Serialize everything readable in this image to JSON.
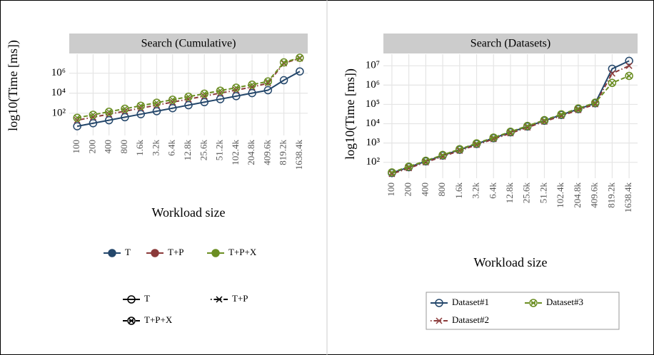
{
  "chart_data": [
    {
      "type": "line",
      "title": "Search (Cumulative)",
      "xlabel": "Workload size",
      "ylabel": "log10(Time [ms])",
      "categories": [
        "100",
        "200",
        "400",
        "800",
        "1.6k",
        "3.2k",
        "6.4k",
        "12.8k",
        "25.6k",
        "51.2k",
        "102.4k",
        "204.8k",
        "409.6k",
        "819.2k",
        "1638.4k"
      ],
      "series": [
        {
          "name": "T",
          "color": "#24476b",
          "marker": "circle",
          "linestyle": "solid",
          "values": [
            5,
            10,
            20,
            40,
            80,
            160,
            320,
            640,
            1280,
            2560,
            5120,
            10240,
            20000,
            200000,
            1500000
          ]
        },
        {
          "name": "T+P",
          "color": "#8b3a3a",
          "marker": "x",
          "linestyle": "dotdash",
          "values": [
            20,
            40,
            80,
            160,
            320,
            640,
            1280,
            2560,
            5120,
            10240,
            20480,
            40960,
            100000,
            10000000,
            30000000
          ]
        },
        {
          "name": "T+P+X",
          "color": "#6b8e23",
          "marker": "circle-x",
          "linestyle": "dashed",
          "values": [
            35,
            70,
            140,
            280,
            560,
            1120,
            2240,
            4480,
            8960,
            17920,
            35840,
            71680,
            150000,
            12000000,
            35000000
          ]
        }
      ],
      "ylim": [
        0.6,
        80000000
      ],
      "log_scale": true,
      "yticks": [
        {
          "value": 100,
          "label": "10²"
        },
        {
          "value": 10000,
          "label": "10⁴"
        },
        {
          "value": 1000000,
          "label": "10⁶"
        }
      ],
      "grid": true,
      "legend": "bottom",
      "legends": [
        "color",
        "shape"
      ]
    },
    {
      "type": "line",
      "title": "Search (Datasets)",
      "xlabel": "Workload size",
      "ylabel": "log10(Time [ms])",
      "categories": [
        "100",
        "200",
        "400",
        "800",
        "1.6k",
        "3.2k",
        "6.4k",
        "12.8k",
        "25.6k",
        "51.2k",
        "102.4k",
        "204.8k",
        "409.6k",
        "819.2k",
        "1638.4k"
      ],
      "series": [
        {
          "name": "Dataset#1",
          "color": "#24476b",
          "marker": "circle",
          "linestyle": "solid",
          "values": [
            28,
            56,
            112,
            224,
            448,
            896,
            1792,
            3584,
            7168,
            14336,
            28672,
            57344,
            114688,
            7000000,
            18000000
          ]
        },
        {
          "name": "Dataset#2",
          "color": "#8b3a3a",
          "marker": "x",
          "linestyle": "dotdash",
          "values": [
            25,
            50,
            100,
            200,
            400,
            800,
            1600,
            3200,
            6400,
            12800,
            25600,
            51200,
            102400,
            4000000,
            10000000
          ]
        },
        {
          "name": "Dataset#3",
          "color": "#6b8e23",
          "marker": "circle-x",
          "linestyle": "dashed",
          "values": [
            30,
            60,
            120,
            240,
            480,
            960,
            1920,
            3840,
            7680,
            15360,
            30720,
            61440,
            122880,
            1300000,
            3000000
          ]
        }
      ],
      "ylim": [
        15,
        40000000
      ],
      "log_scale": true,
      "yticks": [
        {
          "value": 100,
          "label": "10²"
        },
        {
          "value": 1000,
          "label": "10³"
        },
        {
          "value": 10000,
          "label": "10⁴"
        },
        {
          "value": 100000,
          "label": "10⁵"
        },
        {
          "value": 1000000,
          "label": "10⁶"
        },
        {
          "value": 10000000,
          "label": "10⁷"
        }
      ],
      "grid": true,
      "legend": "bottom",
      "legends": [
        "combined"
      ]
    }
  ]
}
